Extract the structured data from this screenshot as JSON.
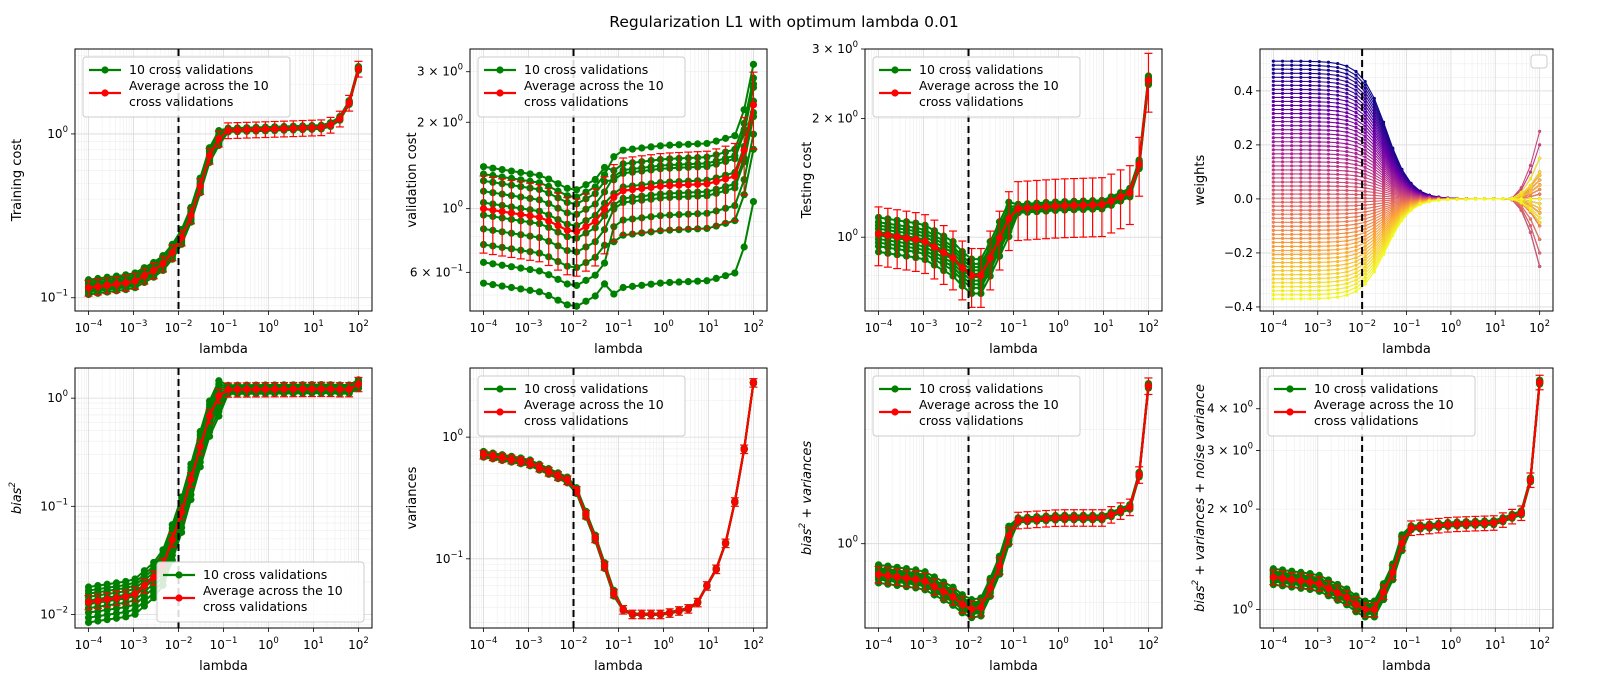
{
  "figure": {
    "title": "Regularization L1 with optimum lambda 0.01"
  },
  "colors": {
    "cv_line": "#008000",
    "average_line": "#ff0000",
    "optimum_line": "#000000",
    "grid_major": "#d9d9d9",
    "grid_minor": "#eeeeee",
    "weights_colormap": [
      "#0d0887",
      "#6a00a8",
      "#b12a90",
      "#e16462",
      "#fca636",
      "#f0f921"
    ]
  },
  "chart_data": [
    {
      "type": "line",
      "id": "p1",
      "xlabel": "lambda",
      "ylabel": "Training cost",
      "ylabel_kind": "text",
      "xscale": "log",
      "yscale": "log",
      "xlim": [
        5e-05,
        200
      ],
      "ylim": [
        0.083,
        3.3
      ],
      "xticks": [
        {
          "v": 0.0001,
          "b": "10",
          "e": "−4"
        },
        {
          "v": 0.001,
          "b": "10",
          "e": "−3"
        },
        {
          "v": 0.01,
          "b": "10",
          "e": "−2"
        },
        {
          "v": 0.1,
          "b": "10",
          "e": "−1"
        },
        {
          "v": 1,
          "b": "10",
          "e": "0"
        },
        {
          "v": 10,
          "b": "10",
          "e": "1"
        },
        {
          "v": 100,
          "b": "10",
          "e": "2"
        }
      ],
      "yticks": [
        {
          "v": 0.1,
          "b": "10",
          "e": "−1"
        },
        {
          "v": 1,
          "b": "10",
          "e": "0"
        }
      ],
      "vline": 0.01,
      "legend": {
        "position": "top-left",
        "entries": [
          "10 cross validations",
          "Average across the 10",
          " cross validations"
        ]
      },
      "knots": [
        [
          0.0001,
          0.115
        ],
        [
          0.001,
          0.125
        ],
        [
          0.004,
          0.155
        ],
        [
          0.01,
          0.21
        ],
        [
          0.02,
          0.33
        ],
        [
          0.05,
          0.75
        ],
        [
          0.1,
          1.05
        ],
        [
          1,
          1.07
        ],
        [
          20,
          1.1
        ],
        [
          50,
          1.3
        ],
        [
          80,
          1.9
        ],
        [
          100,
          2.5
        ]
      ],
      "err": 0.11,
      "cv_offsets": [
        -0.09,
        -0.06,
        -0.04,
        -0.02,
        0.0,
        0.02,
        0.04,
        0.06,
        0.09,
        0.12
      ],
      "cv_converge": true
    },
    {
      "type": "line",
      "id": "p2",
      "xlabel": "lambda",
      "ylabel": "validation cost",
      "ylabel_kind": "text",
      "xscale": "log",
      "yscale": "log",
      "xlim": [
        5e-05,
        200
      ],
      "ylim": [
        0.44,
        3.6
      ],
      "xticks": [
        {
          "v": 0.0001,
          "b": "10",
          "e": "−4"
        },
        {
          "v": 0.001,
          "b": "10",
          "e": "−3"
        },
        {
          "v": 0.01,
          "b": "10",
          "e": "−2"
        },
        {
          "v": 0.1,
          "b": "10",
          "e": "−1"
        },
        {
          "v": 1,
          "b": "10",
          "e": "0"
        },
        {
          "v": 10,
          "b": "10",
          "e": "1"
        },
        {
          "v": 100,
          "b": "10",
          "e": "2"
        }
      ],
      "yticks": [
        {
          "v": 0.6,
          "b": "6 × 10",
          "e": "−1"
        },
        {
          "v": 1,
          "b": "10",
          "e": "0"
        },
        {
          "v": 2,
          "b": "2 × 10",
          "e": "0"
        },
        {
          "v": 3,
          "b": "3 × 10",
          "e": "0"
        }
      ],
      "vline": 0.01,
      "legend": {
        "position": "top-left",
        "entries": [
          "10 cross validations",
          "Average across the 10",
          " cross validations"
        ]
      },
      "knots": [
        [
          0.0001,
          1.0
        ],
        [
          0.002,
          0.93
        ],
        [
          0.01,
          0.82
        ],
        [
          0.03,
          0.9
        ],
        [
          0.1,
          1.15
        ],
        [
          1,
          1.2
        ],
        [
          10,
          1.22
        ],
        [
          40,
          1.3
        ],
        [
          80,
          1.8
        ],
        [
          100,
          2.3
        ]
      ],
      "err": 0.3,
      "cv_offsets": [
        -0.45,
        -0.35,
        -0.25,
        -0.15,
        -0.05,
        0.05,
        0.15,
        0.25,
        0.32,
        0.4
      ],
      "cv_converge": false
    },
    {
      "type": "line",
      "id": "p3",
      "xlabel": "lambda",
      "ylabel": "Testing cost",
      "ylabel_kind": "text",
      "xscale": "log",
      "yscale": "log",
      "xlim": [
        5e-05,
        200
      ],
      "ylim": [
        0.65,
        3.0
      ],
      "xticks": [
        {
          "v": 0.0001,
          "b": "10",
          "e": "−4"
        },
        {
          "v": 0.001,
          "b": "10",
          "e": "−3"
        },
        {
          "v": 0.01,
          "b": "10",
          "e": "−2"
        },
        {
          "v": 0.1,
          "b": "10",
          "e": "−1"
        },
        {
          "v": 1,
          "b": "10",
          "e": "0"
        },
        {
          "v": 10,
          "b": "10",
          "e": "1"
        },
        {
          "v": 100,
          "b": "10",
          "e": "2"
        }
      ],
      "yticks": [
        {
          "v": 1,
          "b": "10",
          "e": "0"
        },
        {
          "v": 2,
          "b": "2 × 10",
          "e": "0"
        },
        {
          "v": 3,
          "b": "3 × 10",
          "e": "0"
        }
      ],
      "vline": 0.01,
      "legend": {
        "position": "top-left",
        "entries": [
          "10 cross validations",
          "Average across the 10",
          " cross validations"
        ]
      },
      "knots": [
        [
          0.0001,
          1.02
        ],
        [
          0.001,
          0.98
        ],
        [
          0.005,
          0.88
        ],
        [
          0.01,
          0.8
        ],
        [
          0.02,
          0.8
        ],
        [
          0.05,
          1.0
        ],
        [
          0.1,
          1.18
        ],
        [
          1,
          1.2
        ],
        [
          10,
          1.21
        ],
        [
          40,
          1.3
        ],
        [
          70,
          1.6
        ],
        [
          100,
          2.5
        ]
      ],
      "err": 0.17,
      "cv_offsets": [
        -0.1,
        -0.07,
        -0.05,
        -0.03,
        -0.01,
        0.01,
        0.03,
        0.05,
        0.07,
        0.1
      ],
      "cv_converge": true
    },
    {
      "type": "line",
      "id": "p4",
      "xlabel": "lambda",
      "ylabel": "weights",
      "ylabel_kind": "text",
      "xscale": "log",
      "yscale": "linear",
      "xlim": [
        5e-05,
        200
      ],
      "ylim": [
        -0.415,
        0.555
      ],
      "xticks": [
        {
          "v": 0.0001,
          "b": "10",
          "e": "−4"
        },
        {
          "v": 0.001,
          "b": "10",
          "e": "−3"
        },
        {
          "v": 0.01,
          "b": "10",
          "e": "−2"
        },
        {
          "v": 0.1,
          "b": "10",
          "e": "−1"
        },
        {
          "v": 1,
          "b": "10",
          "e": "0"
        },
        {
          "v": 10,
          "b": "10",
          "e": "1"
        },
        {
          "v": 100,
          "b": "10",
          "e": "2"
        }
      ],
      "yticks": [
        {
          "v": -0.4,
          "b": "−0.4",
          "e": ""
        },
        {
          "v": -0.2,
          "b": "−0.2",
          "e": ""
        },
        {
          "v": 0,
          "b": "0.0",
          "e": ""
        },
        {
          "v": 0.2,
          "b": "0.2",
          "e": ""
        },
        {
          "v": 0.4,
          "b": "0.4",
          "e": ""
        }
      ],
      "vline": 0.01,
      "legend": {
        "position": "top-right",
        "entries": []
      },
      "weights": {
        "n": 60,
        "max": 0.51,
        "min": -0.37,
        "end_spread": 0.25
      }
    },
    {
      "type": "line",
      "id": "p5",
      "xlabel": "lambda",
      "ylabel": "bias",
      "ylabel_sup": "2",
      "ylabel_kind": "math",
      "xscale": "log",
      "yscale": "log",
      "xlim": [
        5e-05,
        200
      ],
      "ylim": [
        0.0075,
        1.9
      ],
      "xticks": [
        {
          "v": 0.0001,
          "b": "10",
          "e": "−4"
        },
        {
          "v": 0.001,
          "b": "10",
          "e": "−3"
        },
        {
          "v": 0.01,
          "b": "10",
          "e": "−2"
        },
        {
          "v": 0.1,
          "b": "10",
          "e": "−1"
        },
        {
          "v": 1,
          "b": "10",
          "e": "0"
        },
        {
          "v": 10,
          "b": "10",
          "e": "1"
        },
        {
          "v": 100,
          "b": "10",
          "e": "2"
        }
      ],
      "yticks": [
        {
          "v": 0.01,
          "b": "10",
          "e": "−2"
        },
        {
          "v": 0.1,
          "b": "10",
          "e": "−1"
        },
        {
          "v": 1,
          "b": "10",
          "e": "0"
        }
      ],
      "vline": 0.01,
      "legend": {
        "position": "bottom-right",
        "entries": [
          "10 cross validations",
          "Average across the 10",
          " cross validations"
        ]
      },
      "knots": [
        [
          0.0001,
          0.013
        ],
        [
          0.001,
          0.015
        ],
        [
          0.004,
          0.025
        ],
        [
          0.01,
          0.07
        ],
        [
          0.03,
          0.35
        ],
        [
          0.06,
          0.9
        ],
        [
          0.1,
          1.2
        ],
        [
          20,
          1.22
        ],
        [
          60,
          1.2
        ],
        [
          100,
          1.35
        ]
      ],
      "err": 0.15,
      "cv_offsets": [
        -0.35,
        -0.28,
        -0.2,
        -0.12,
        -0.04,
        0.04,
        0.12,
        0.2,
        0.28,
        0.38
      ],
      "cv_converge": true
    },
    {
      "type": "line",
      "id": "p6",
      "xlabel": "lambda",
      "ylabel": "variances",
      "ylabel_kind": "text",
      "xscale": "log",
      "yscale": "log",
      "xlim": [
        5e-05,
        200
      ],
      "ylim": [
        0.027,
        3.7
      ],
      "xticks": [
        {
          "v": 0.0001,
          "b": "10",
          "e": "−4"
        },
        {
          "v": 0.001,
          "b": "10",
          "e": "−3"
        },
        {
          "v": 0.01,
          "b": "10",
          "e": "−2"
        },
        {
          "v": 0.1,
          "b": "10",
          "e": "−1"
        },
        {
          "v": 1,
          "b": "10",
          "e": "0"
        },
        {
          "v": 10,
          "b": "10",
          "e": "1"
        },
        {
          "v": 100,
          "b": "10",
          "e": "2"
        }
      ],
      "yticks": [
        {
          "v": 0.1,
          "b": "10",
          "e": "−1"
        },
        {
          "v": 1,
          "b": "10",
          "e": "0"
        }
      ],
      "vline": 0.01,
      "legend": {
        "position": "top-left",
        "entries": [
          "10 cross validations",
          "Average across the 10",
          " cross validations"
        ]
      },
      "knots": [
        [
          0.0001,
          0.72
        ],
        [
          0.001,
          0.62
        ],
        [
          0.01,
          0.42
        ],
        [
          0.03,
          0.15
        ],
        [
          0.1,
          0.04
        ],
        [
          0.2,
          0.035
        ],
        [
          1,
          0.035
        ],
        [
          5,
          0.04
        ],
        [
          20,
          0.1
        ],
        [
          50,
          0.45
        ],
        [
          100,
          2.8
        ]
      ],
      "err": 0.08,
      "cv_offsets": [
        -0.05,
        -0.03,
        -0.02,
        -0.01,
        0.0,
        0.01,
        0.02,
        0.03,
        0.04,
        0.06
      ],
      "cv_converge": true
    },
    {
      "type": "line",
      "id": "p7",
      "xlabel": "lambda",
      "ylabel": "bias",
      "ylabel_sup": "2",
      "ylabel_tail": " + variances",
      "ylabel_kind": "math",
      "xscale": "log",
      "yscale": "log",
      "xlim": [
        5e-05,
        200
      ],
      "ylim": [
        0.6,
        2.9
      ],
      "xticks": [
        {
          "v": 0.0001,
          "b": "10",
          "e": "−4"
        },
        {
          "v": 0.001,
          "b": "10",
          "e": "−3"
        },
        {
          "v": 0.01,
          "b": "10",
          "e": "−2"
        },
        {
          "v": 0.1,
          "b": "10",
          "e": "−1"
        },
        {
          "v": 1,
          "b": "10",
          "e": "0"
        },
        {
          "v": 10,
          "b": "10",
          "e": "1"
        },
        {
          "v": 100,
          "b": "10",
          "e": "2"
        }
      ],
      "yticks": [
        {
          "v": 1,
          "b": "10",
          "e": "0"
        }
      ],
      "vline": 0.01,
      "legend": {
        "position": "top-left",
        "entries": [
          "10 cross validations",
          "Average across the 10",
          " cross validations"
        ]
      },
      "knots": [
        [
          0.0001,
          0.83
        ],
        [
          0.001,
          0.8
        ],
        [
          0.005,
          0.72
        ],
        [
          0.01,
          0.67
        ],
        [
          0.02,
          0.68
        ],
        [
          0.05,
          0.88
        ],
        [
          0.1,
          1.15
        ],
        [
          1,
          1.17
        ],
        [
          10,
          1.17
        ],
        [
          40,
          1.25
        ],
        [
          70,
          1.6
        ],
        [
          100,
          2.6
        ]
      ],
      "err": 0.05,
      "cv_offsets": [
        -0.05,
        -0.03,
        -0.02,
        -0.01,
        0.0,
        0.01,
        0.02,
        0.03,
        0.04,
        0.06
      ],
      "cv_converge": true
    },
    {
      "type": "line",
      "id": "p8",
      "xlabel": "lambda",
      "ylabel": "bias",
      "ylabel_sup": "2",
      "ylabel_tail": " + variances + noise variance",
      "ylabel_kind": "math",
      "xscale": "log",
      "yscale": "log",
      "xlim": [
        5e-05,
        200
      ],
      "ylim": [
        0.88,
        5.3
      ],
      "xticks": [
        {
          "v": 0.0001,
          "b": "10",
          "e": "−4"
        },
        {
          "v": 0.001,
          "b": "10",
          "e": "−3"
        },
        {
          "v": 0.01,
          "b": "10",
          "e": "−2"
        },
        {
          "v": 0.1,
          "b": "10",
          "e": "−1"
        },
        {
          "v": 1,
          "b": "10",
          "e": "0"
        },
        {
          "v": 10,
          "b": "10",
          "e": "1"
        },
        {
          "v": 100,
          "b": "10",
          "e": "2"
        }
      ],
      "yticks": [
        {
          "v": 1,
          "b": "10",
          "e": "0"
        },
        {
          "v": 2,
          "b": "2 × 10",
          "e": "0"
        },
        {
          "v": 3,
          "b": "3 × 10",
          "e": "0"
        },
        {
          "v": 4,
          "b": "4 × 10",
          "e": "0"
        }
      ],
      "vline": 0.01,
      "legend": {
        "position": "top-left",
        "entries": [
          "10 cross validations",
          "Average across the 10",
          " cross validations"
        ]
      },
      "knots": [
        [
          0.0001,
          1.25
        ],
        [
          0.001,
          1.2
        ],
        [
          0.005,
          1.08
        ],
        [
          0.01,
          1.0
        ],
        [
          0.02,
          1.0
        ],
        [
          0.05,
          1.3
        ],
        [
          0.1,
          1.75
        ],
        [
          1,
          1.8
        ],
        [
          10,
          1.82
        ],
        [
          40,
          1.95
        ],
        [
          70,
          2.6
        ],
        [
          100,
          4.8
        ]
      ],
      "err": 0.05,
      "cv_offsets": [
        -0.05,
        -0.03,
        -0.02,
        -0.01,
        0.0,
        0.01,
        0.02,
        0.03,
        0.04,
        0.06
      ],
      "cv_converge": true
    }
  ]
}
